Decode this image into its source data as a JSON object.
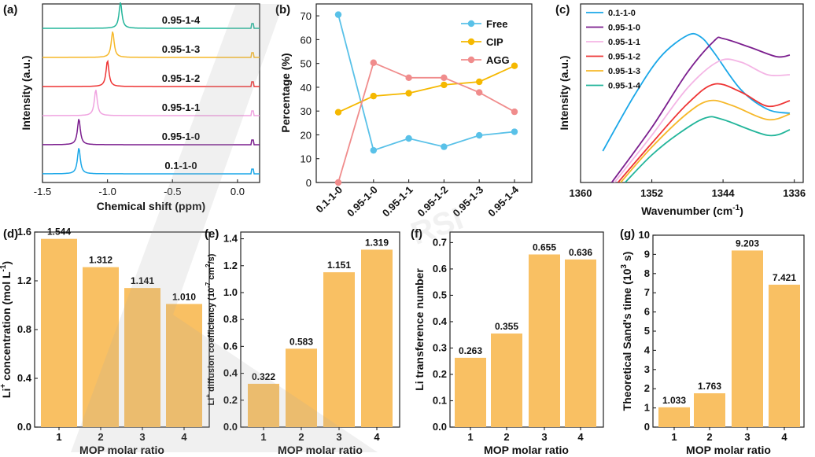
{
  "colors": {
    "bar": "#F9C063",
    "free": "#59C1E8",
    "cip": "#F5B800",
    "agg": "#F08C8C",
    "nmr": [
      "#1AA7E8",
      "#7B1E8E",
      "#F0A3E0",
      "#EE3434",
      "#F6B829",
      "#22B59A"
    ],
    "ftir": [
      "#1AA7E8",
      "#7B1E8E",
      "#F4B5E5",
      "#EE3434",
      "#F6B829",
      "#22B59A"
    ]
  },
  "watermark": "RSI",
  "chart_data": [
    {
      "panel": "(a)",
      "type": "line",
      "xlabel": "Chemical shift (ppm)",
      "ylabel": "Intensity (a.u.)",
      "xlim": [
        -1.5,
        0.17
      ],
      "xticks": [
        "-1.5",
        "-1.0",
        "-0.5",
        "0.0"
      ],
      "xtick_values": [
        -1.5,
        -1.0,
        -0.5,
        0.0
      ],
      "series": [
        {
          "name": "0.1-1-0",
          "peak": -1.22
        },
        {
          "name": "0.95-1-0",
          "peak": -1.22
        },
        {
          "name": "0.95-1-1",
          "peak": -1.09
        },
        {
          "name": "0.95-1-2",
          "peak": -1.0
        },
        {
          "name": "0.95-1-3",
          "peak": -0.96
        },
        {
          "name": "0.95-1-4",
          "peak": -0.9
        }
      ]
    },
    {
      "panel": "(b)",
      "type": "line",
      "xlabel": "",
      "ylabel": "Percentage (%)",
      "ylim": [
        0,
        75
      ],
      "yticks": [
        "0",
        "10",
        "20",
        "30",
        "40",
        "50",
        "60",
        "70"
      ],
      "ytick_values": [
        0,
        10,
        20,
        30,
        40,
        50,
        60,
        70
      ],
      "categories": [
        "0.1-1-0",
        "0.95-1-0",
        "0.95-1-1",
        "0.95-1-2",
        "0.95-1-3",
        "0.95-1-4"
      ],
      "series": [
        {
          "name": "Free",
          "values": [
            70.5,
            13.5,
            18.5,
            15,
            19.8,
            21.3
          ]
        },
        {
          "name": "CIP",
          "values": [
            29.5,
            36.3,
            37.5,
            41,
            42.3,
            49
          ]
        },
        {
          "name": "AGG",
          "values": [
            0,
            50.3,
            44,
            44,
            37.8,
            29.7
          ]
        }
      ]
    },
    {
      "panel": "(c)",
      "type": "line",
      "xlabel": "Wavenumber (cm",
      "xlabel_sup": "-1",
      "xlabel_end": ")",
      "ylabel": "Intensity (a.u.)",
      "xlim": [
        1360,
        1335
      ],
      "xticks": [
        "1360",
        "1352",
        "1344",
        "1336"
      ],
      "xtick_values": [
        1360,
        1352,
        1344,
        1336
      ],
      "series": [
        {
          "name": "0.1-1-0",
          "x": [
            1357.5,
            1354,
            1351,
            1348,
            1346.5,
            1345,
            1342,
            1339,
            1336.5
          ],
          "y": [
            40,
            110,
            160,
            187,
            185,
            165,
            118,
            93,
            88
          ]
        },
        {
          "name": "0.95-1-0",
          "x": [
            1356.5,
            1352,
            1348,
            1345,
            1344,
            1341,
            1338,
            1336.5
          ],
          "y": [
            0,
            70,
            140,
            180,
            183,
            172,
            160,
            162
          ]
        },
        {
          "name": "0.95-1-1",
          "x": [
            1356.2,
            1352,
            1348,
            1344.5,
            1342,
            1339,
            1336.5
          ],
          "y": [
            0,
            60,
            120,
            154,
            153,
            137,
            137
          ]
        },
        {
          "name": "0.95-1-2",
          "x": [
            1355.8,
            1352,
            1348,
            1345,
            1342,
            1339,
            1336.5
          ],
          "y": [
            0,
            50,
            100,
            125,
            115,
            97,
            104
          ]
        },
        {
          "name": "0.95-1-3",
          "x": [
            1355.5,
            1352,
            1348,
            1345.5,
            1343,
            1339,
            1336.5
          ],
          "y": [
            0,
            45,
            88,
            104,
            98,
            80,
            87
          ]
        },
        {
          "name": "0.95-1-4",
          "x": [
            1355,
            1352,
            1349,
            1346,
            1344,
            1339,
            1336.5
          ],
          "y": [
            0,
            35,
            62,
            82,
            80,
            60,
            67
          ]
        }
      ]
    },
    {
      "panel": "(d)",
      "type": "bar",
      "xlabel": "MOP molar ratio",
      "ylabel": "Li",
      "ylabel_sup": "+",
      "ylabel_rest": " concentration (mol L",
      "ylabel_sup2": "-1",
      "ylabel_end": ")",
      "ylim": [
        0,
        1.6
      ],
      "yticks": [
        "0.0",
        "0.4",
        "0.8",
        "1.2",
        "1.6"
      ],
      "ytick_values": [
        0,
        0.4,
        0.8,
        1.2,
        1.6
      ],
      "categories": [
        "1",
        "2",
        "3",
        "4"
      ],
      "values": [
        1.544,
        1.312,
        1.141,
        1.01
      ],
      "labels": [
        "1.544",
        "1.312",
        "1.141",
        "1.010"
      ]
    },
    {
      "panel": "(e)",
      "type": "bar",
      "xlabel": "MOP molar ratio",
      "ylabel": "Li",
      "ylabel_sup": "+",
      "ylabel_rest": " diffusion coefficiency (10",
      "ylabel_sup2": "-7",
      "ylabel_mid": " cm",
      "ylabel_sup3": "2",
      "ylabel_end": "/s)",
      "ylim": [
        0,
        1.45
      ],
      "yticks": [
        "0.0",
        "0.2",
        "0.4",
        "0.6",
        "0.8",
        "1.0",
        "1.2",
        "1.4"
      ],
      "ytick_values": [
        0,
        0.2,
        0.4,
        0.6,
        0.8,
        1.0,
        1.2,
        1.4
      ],
      "categories": [
        "1",
        "2",
        "3",
        "4"
      ],
      "values": [
        0.322,
        0.583,
        1.151,
        1.319
      ],
      "labels": [
        "0.322",
        "0.583",
        "1.151",
        "1.319"
      ]
    },
    {
      "panel": "(f)",
      "type": "bar",
      "xlabel": "MOP molar ratio",
      "ylabel": "Li transference number",
      "ylim": [
        0,
        0.74
      ],
      "yticks": [
        "0.0",
        "0.1",
        "0.2",
        "0.3",
        "0.4",
        "0.5",
        "0.6",
        "0.7"
      ],
      "ytick_values": [
        0,
        0.1,
        0.2,
        0.3,
        0.4,
        0.5,
        0.6,
        0.7
      ],
      "categories": [
        "1",
        "2",
        "3",
        "4"
      ],
      "values": [
        0.263,
        0.355,
        0.655,
        0.636
      ],
      "labels": [
        "0.263",
        "0.355",
        "0.655",
        "0.636"
      ]
    },
    {
      "panel": "(g)",
      "type": "bar",
      "xlabel": "MOP molar ratio",
      "ylabel": "Theoretical Sand's time (10",
      "ylabel_sup": "3",
      "ylabel_end": " s)",
      "ylim": [
        0,
        10
      ],
      "yticks": [
        "0",
        "1",
        "2",
        "3",
        "4",
        "5",
        "6",
        "7",
        "8",
        "9",
        "10"
      ],
      "ytick_values": [
        0,
        1,
        2,
        3,
        4,
        5,
        6,
        7,
        8,
        9,
        10
      ],
      "categories": [
        "1",
        "2",
        "3",
        "4"
      ],
      "values": [
        1.033,
        1.763,
        9.203,
        7.421
      ],
      "labels": [
        "1.033",
        "1.763",
        "9.203",
        "7.421"
      ]
    }
  ]
}
